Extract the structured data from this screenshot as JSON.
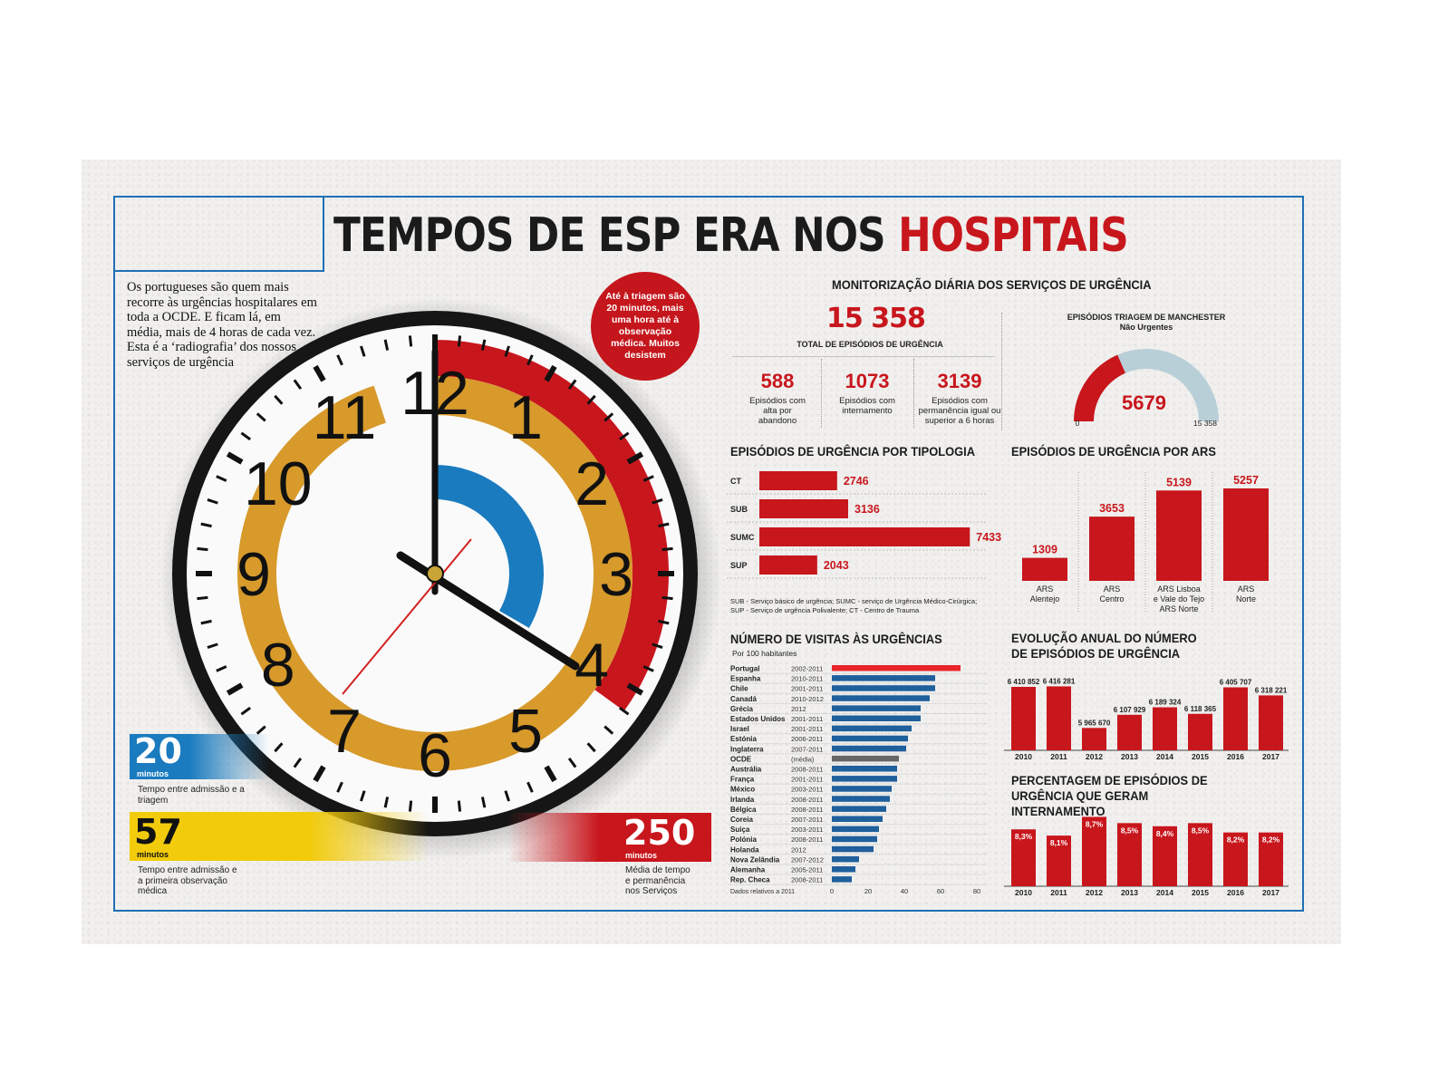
{
  "title": {
    "part1": "TEMPOS DE ESP ERA NOS ",
    "part2": "HOSPITAIS"
  },
  "intro": "Os portugueses são quem mais recorre às urgências hospitalares em toda a OCDE. E ficam lá, em média, mais de 4 horas de cada vez. Esta é a ‘radiografia’ dos nossos serviços de urgência",
  "bubble": "Até à triagem são 20 minutos, mais uma hora até à observação médica. Muitos desistem",
  "clock": {
    "numbers": [
      "12",
      "1",
      "2",
      "3",
      "4",
      "5",
      "6",
      "7",
      "8",
      "9",
      "10",
      "11"
    ]
  },
  "badges": [
    {
      "value": "20",
      "unit": "minutos",
      "caption": "Tempo entre admissão e a triagem",
      "color": "#1a7bbf"
    },
    {
      "value": "57",
      "unit": "minutos",
      "caption": "Tempo entre admissão e a primeira observação médica",
      "color": "#f2cb0c"
    },
    {
      "value": "250",
      "unit": "minutos",
      "caption": "Média de tempo e permanência nos Serviços",
      "color": "#c8161d"
    }
  ],
  "monitor": {
    "heading": "MONITORIZAÇÃO DIÁRIA DOS SERVIÇOS DE URGÊNCIA",
    "total_value": "15 358",
    "total_label": "TOTAL DE EPISÓDIOS DE URGÊNCIA",
    "stats": [
      {
        "value": "588",
        "label": "Episódios com alta por abandono"
      },
      {
        "value": "1073",
        "label": "Episódios com internamento"
      },
      {
        "value": "3139",
        "label": "Episódios com permanência igual ou superior a 6 horas"
      }
    ]
  },
  "colors": {
    "red": "#c8161d",
    "blue": "#1a7bbf",
    "gold": "#d79a2b",
    "gauge_grey": "#b8cfd8"
  },
  "chart_data": [
    {
      "type": "gauge",
      "title": "EPISÓDIOS TRIAGEM DE MANCHESTER",
      "subtitle": "Não Urgentes",
      "value": 5679,
      "value_label": "5679",
      "min": 0,
      "max": 15358,
      "min_label": "0",
      "max_label": "15 358"
    },
    {
      "type": "bar",
      "orientation": "horizontal",
      "title": "EPISÓDIOS DE URGÊNCIA POR TIPOLOGIA",
      "categories": [
        "CT",
        "SUB",
        "SUMC",
        "SUP"
      ],
      "values": [
        2746,
        3136,
        7433,
        2043
      ],
      "value_labels": [
        "2746",
        "3136",
        "7433",
        "2043"
      ],
      "note": "SUB - Serviço básico de urgência; SUMC - serviço de Urgência Médico-Cirúrgica; SUP - Serviço de urgência Polivalente; CT - Centro de Trauma"
    },
    {
      "type": "bar",
      "title": "EPISÓDIOS DE URGÊNCIA POR ARS",
      "categories": [
        "ARS Alentejo",
        "ARS Centro",
        "ARS Lisboa e Vale do Tejo ARS Norte",
        "ARS Norte"
      ],
      "values": [
        1309,
        3653,
        5139,
        5257
      ],
      "value_labels": [
        "1309",
        "3653",
        "5139",
        "5257"
      ]
    },
    {
      "type": "bar",
      "orientation": "horizontal",
      "title": "NÚMERO DE VISITAS ÀS URGÊNCIAS",
      "subtitle": "Por 100 habitantes",
      "categories": [
        "Portugal",
        "Espanha",
        "Chile",
        "Canadá",
        "Grécia",
        "Estados Unidos",
        "Israel",
        "Estónia",
        "Inglaterra",
        "OCDE",
        "Austrália",
        "França",
        "México",
        "Irlanda",
        "Bélgica",
        "Coreia",
        "Suiça",
        "Polónia",
        "Holanda",
        "Nova Zelândia",
        "Alemanha",
        "Rep. Checa"
      ],
      "periods": [
        "2002-2011",
        "2010-2011",
        "2001-2011",
        "2010-2012",
        "2012",
        "2001-2011",
        "2001-2011",
        "2006-2011",
        "2007-2011",
        "(média)",
        "2008-2011",
        "2001-2011",
        "2003-2011",
        "2008-2011",
        "2008-2011",
        "2007-2011",
        "2003-2011",
        "2008-2011",
        "2012",
        "2007-2012",
        "2005-2011",
        "2008-2011"
      ],
      "values": [
        71,
        57,
        57,
        54,
        49,
        49,
        44,
        42,
        41,
        37,
        36,
        36,
        33,
        32,
        30,
        28,
        26,
        25,
        23,
        15,
        13,
        11
      ],
      "xlim": [
        0,
        80
      ],
      "xticks": [
        "0",
        "20",
        "40",
        "60",
        "80"
      ],
      "footnote": "Dados relativos a 2011"
    },
    {
      "type": "bar",
      "title": "EVOLUÇÃO ANUAL DO NÚMERO DE EPISÓDIOS DE URGÊNCIA",
      "categories": [
        "2010",
        "2011",
        "2012",
        "2013",
        "2014",
        "2015",
        "2016",
        "2017"
      ],
      "values": [
        6410852,
        6416281,
        5965670,
        6107929,
        6189324,
        6118365,
        6405707,
        6318221
      ],
      "value_labels": [
        "6 410 852",
        "6 416 281",
        "5 965 670",
        "6 107 929",
        "6 189 324",
        "6 118 365",
        "6 405 707",
        "6 318 221"
      ]
    },
    {
      "type": "bar",
      "title": "PERCENTAGEM DE EPISÓDIOS DE URGÊNCIA QUE GERAM INTERNAMENTO",
      "categories": [
        "2010",
        "2011",
        "2012",
        "2013",
        "2014",
        "2015",
        "2016",
        "2017"
      ],
      "values": [
        8.3,
        8.1,
        8.7,
        8.5,
        8.4,
        8.5,
        8.2,
        8.2
      ],
      "value_labels": [
        "8,3%",
        "8,1%",
        "8,7%",
        "8,5%",
        "8,4%",
        "8,5%",
        "8,2%",
        "8,2%"
      ]
    }
  ]
}
